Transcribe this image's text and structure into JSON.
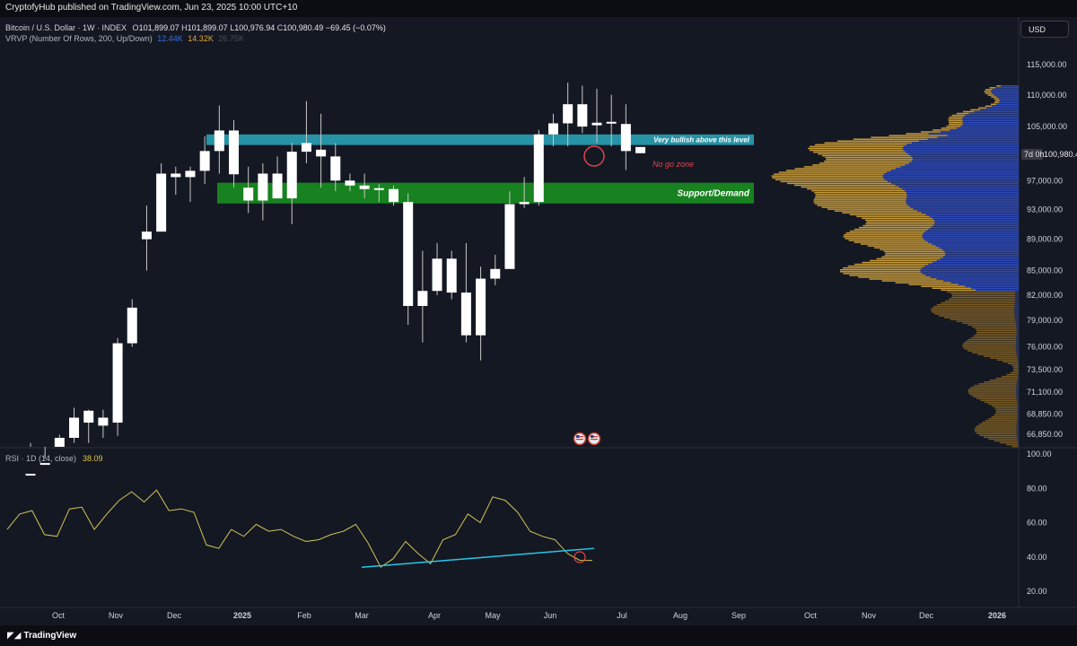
{
  "header": {
    "published": "CryptofyHub published on TradingView.com, Jun 23, 2025 10:00 UTC+10"
  },
  "legend": {
    "symbol": "Bitcoin / U.S. Dollar · 1W · INDEX",
    "o_label": "O",
    "o_value": "101,899.07",
    "h_label": "H",
    "h_value": "101,899.07",
    "l_label": "L",
    "l_value": "100,976.94",
    "c_label": "C",
    "c_value": "100,980.49",
    "change": "−69.45 (−0.07%)",
    "vrvp_label": "VRVP (Number Of Rows, 200, Up/Down)",
    "vrvp_up": "12.44K",
    "vrvp_down": "14.32K",
    "vrvp_total": "26.75K"
  },
  "currency_button": "USD",
  "countdown_badge": "7d 0h",
  "footer": {
    "logo_text": "TradingView"
  },
  "colors": {
    "background": "#141823",
    "candle": "#ffffff",
    "zone_resistance": "#2693a6",
    "zone_support": "#17821f",
    "vp_up": "#2f4cbf",
    "vp_down": "#c79a3a",
    "rsi_line": "#d4c455",
    "trendline": "#29c6e6",
    "annotation_circle": "#e0454a"
  },
  "icons": [
    "us-flag-event-icon",
    "us-flag-event-icon"
  ],
  "chart_data": [
    {
      "type": "candlestick",
      "title": "Bitcoin / U.S. Dollar · 1W · INDEX",
      "y_scale": "log",
      "ylim": [
        65500,
        117500
      ],
      "y_ticks": [
        115000,
        110000,
        105000,
        97000,
        93000,
        89000,
        85000,
        82000,
        79000,
        76000,
        73500,
        71100,
        68850,
        66850
      ],
      "y_tick_labels": [
        "115,000.00",
        "110,000.00",
        "105,000.00",
        "97,000.00",
        "93,000.00",
        "89,000.00",
        "85,000.00",
        "82,000.00",
        "79,000.00",
        "76,000.00",
        "73,500.00",
        "71,100.00",
        "68,850.00",
        "66,850.00"
      ],
      "current_price_label": "100,980.49",
      "x_tick_labels": [
        "Oct",
        "Nov",
        "Dec",
        "2025",
        "Feb",
        "Mar",
        "Apr",
        "May",
        "Jun",
        "Jul",
        "Aug",
        "Sep",
        "Oct",
        "Nov",
        "Dec",
        "2026"
      ],
      "candles_ohlc": [
        [
          63000,
          66000,
          59000,
          60000
        ],
        [
          62800,
          64500,
          58500,
          64000
        ],
        [
          63000,
          66800,
          61500,
          66500
        ],
        [
          66500,
          69500,
          66000,
          68500
        ],
        [
          68000,
          69300,
          66000,
          69200
        ],
        [
          68500,
          69300,
          66500,
          67700
        ],
        [
          68000,
          77000,
          66700,
          76400
        ],
        [
          76400,
          81500,
          76000,
          80500
        ],
        [
          89000,
          93500,
          85000,
          90000
        ],
        [
          90000,
          99500,
          90000,
          98000
        ],
        [
          97500,
          99000,
          95000,
          98000
        ],
        [
          97500,
          99000,
          94000,
          98400
        ],
        [
          98400,
          103500,
          96500,
          101300
        ],
        [
          101300,
          108300,
          98000,
          104400
        ],
        [
          104400,
          106000,
          96000,
          97900
        ],
        [
          96000,
          99000,
          92500,
          94200
        ],
        [
          94200,
          99500,
          91500,
          98000
        ],
        [
          98000,
          100500,
          95500,
          94500
        ],
        [
          94500,
          102500,
          91000,
          101200
        ],
        [
          101200,
          109000,
          99500,
          102500
        ],
        [
          101500,
          107000,
          96000,
          100500
        ],
        [
          100500,
          102500,
          95500,
          97000
        ],
        [
          97000,
          98000,
          95500,
          96300
        ],
        [
          96300,
          98000,
          94500,
          95800
        ],
        [
          95800,
          96500,
          94000,
          95800
        ],
        [
          95800,
          96300,
          93500,
          94000
        ],
        [
          94000,
          95200,
          78500,
          80700
        ],
        [
          80700,
          87500,
          76500,
          82500
        ],
        [
          82500,
          88500,
          82000,
          86500
        ],
        [
          86500,
          87500,
          81500,
          82300
        ],
        [
          82300,
          88500,
          76500,
          77300
        ],
        [
          77300,
          85500,
          74500,
          84000
        ],
        [
          84000,
          87000,
          83200,
          85200
        ],
        [
          85200,
          95500,
          85200,
          93700
        ],
        [
          93700,
          97500,
          93200,
          94000
        ],
        [
          94000,
          104500,
          93500,
          103800
        ],
        [
          103800,
          107000,
          102000,
          105500
        ],
        [
          105500,
          112000,
          102000,
          108500
        ],
        [
          108500,
          111500,
          104000,
          105000
        ],
        [
          105200,
          111000,
          102500,
          105600
        ],
        [
          105600,
          110000,
          102000,
          105400
        ],
        [
          105400,
          108500,
          98500,
          101300
        ],
        [
          101899.07,
          101899.07,
          100976.94,
          100980.49
        ]
      ],
      "zones": [
        {
          "label": "Very bullish above this level",
          "low": 102200,
          "high": 103800
        },
        {
          "label": "Support/Demand",
          "low": 93800,
          "high": 96700
        }
      ],
      "annotations": [
        "No go zone"
      ]
    },
    {
      "type": "line",
      "title": "RSI · 1D (14, close)",
      "value_label": "38.09",
      "ylim": [
        10,
        100
      ],
      "y_ticks": [
        100,
        80,
        60,
        40,
        20
      ],
      "y_tick_labels": [
        "100.00",
        "80.00",
        "60.00",
        "40.00",
        "20.00"
      ],
      "values": [
        56,
        65,
        67,
        53,
        52,
        68,
        69,
        56,
        65,
        73,
        78,
        72,
        79,
        67,
        68,
        66,
        47,
        45,
        56,
        52,
        59,
        55,
        56,
        52,
        49,
        50,
        53,
        55,
        59,
        48,
        34,
        39,
        49,
        42,
        36,
        50,
        53,
        65,
        60,
        75,
        73,
        66,
        55,
        52,
        50,
        42,
        38,
        38
      ]
    }
  ]
}
